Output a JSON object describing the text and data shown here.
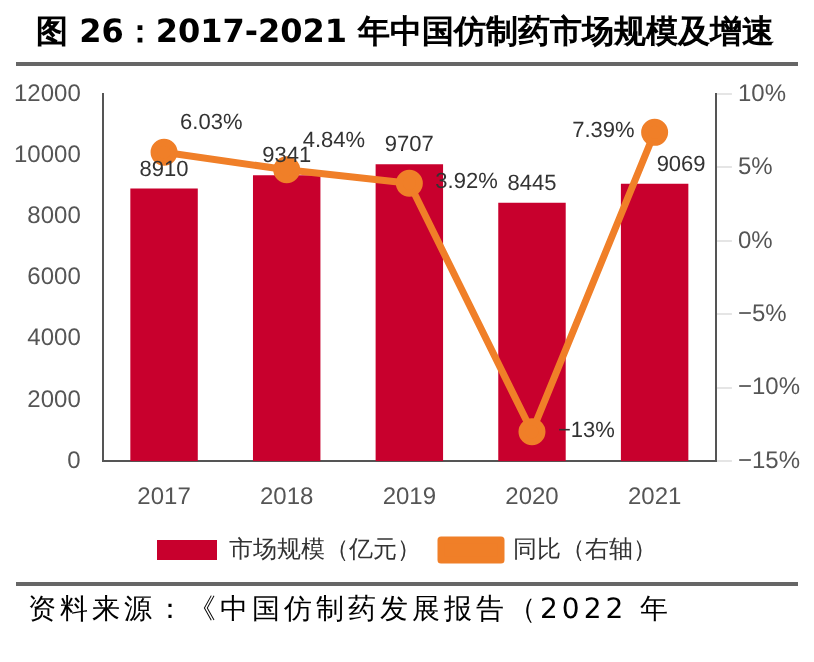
{
  "chart_data": {
    "type": "bar",
    "title": "图 26：2017-2021 年中国仿制药市场规模及增速",
    "categories": [
      "2017",
      "2018",
      "2019",
      "2020",
      "2021"
    ],
    "series": [
      {
        "name": "市场规模（亿元）",
        "color": "#c8002d",
        "values": [
          8910,
          9341,
          9707,
          8445,
          9069
        ],
        "value_labels": [
          "8910",
          "9341",
          "9707",
          "8445",
          "9069"
        ]
      },
      {
        "name": "同比（右轴）",
        "type": "line",
        "axis": "y2",
        "color": "#f07f28",
        "values": [
          6.03,
          4.84,
          3.92,
          -13,
          7.39
        ],
        "value_labels": [
          "6.03%",
          "4.84%",
          "3.92%",
          "−13%",
          "7.39%"
        ]
      }
    ],
    "ylim": [
      0,
      12000
    ],
    "yticks": [
      0,
      2000,
      4000,
      6000,
      8000,
      10000,
      12000
    ],
    "y2lim": [
      -15,
      10
    ],
    "y2ticks": [
      {
        "value": -15,
        "label": "−15%"
      },
      {
        "value": -10,
        "label": "−10%"
      },
      {
        "value": -5,
        "label": "−5%"
      },
      {
        "value": 0,
        "label": "0%"
      },
      {
        "value": 5,
        "label": "5%"
      },
      {
        "value": 10,
        "label": "10%"
      }
    ],
    "grid": false,
    "legend": "bottom",
    "marker": "circle",
    "line_style": "solid",
    "annotations": [
      "资料来源：《中国仿制药发展报告（2022 年"
    ]
  }
}
